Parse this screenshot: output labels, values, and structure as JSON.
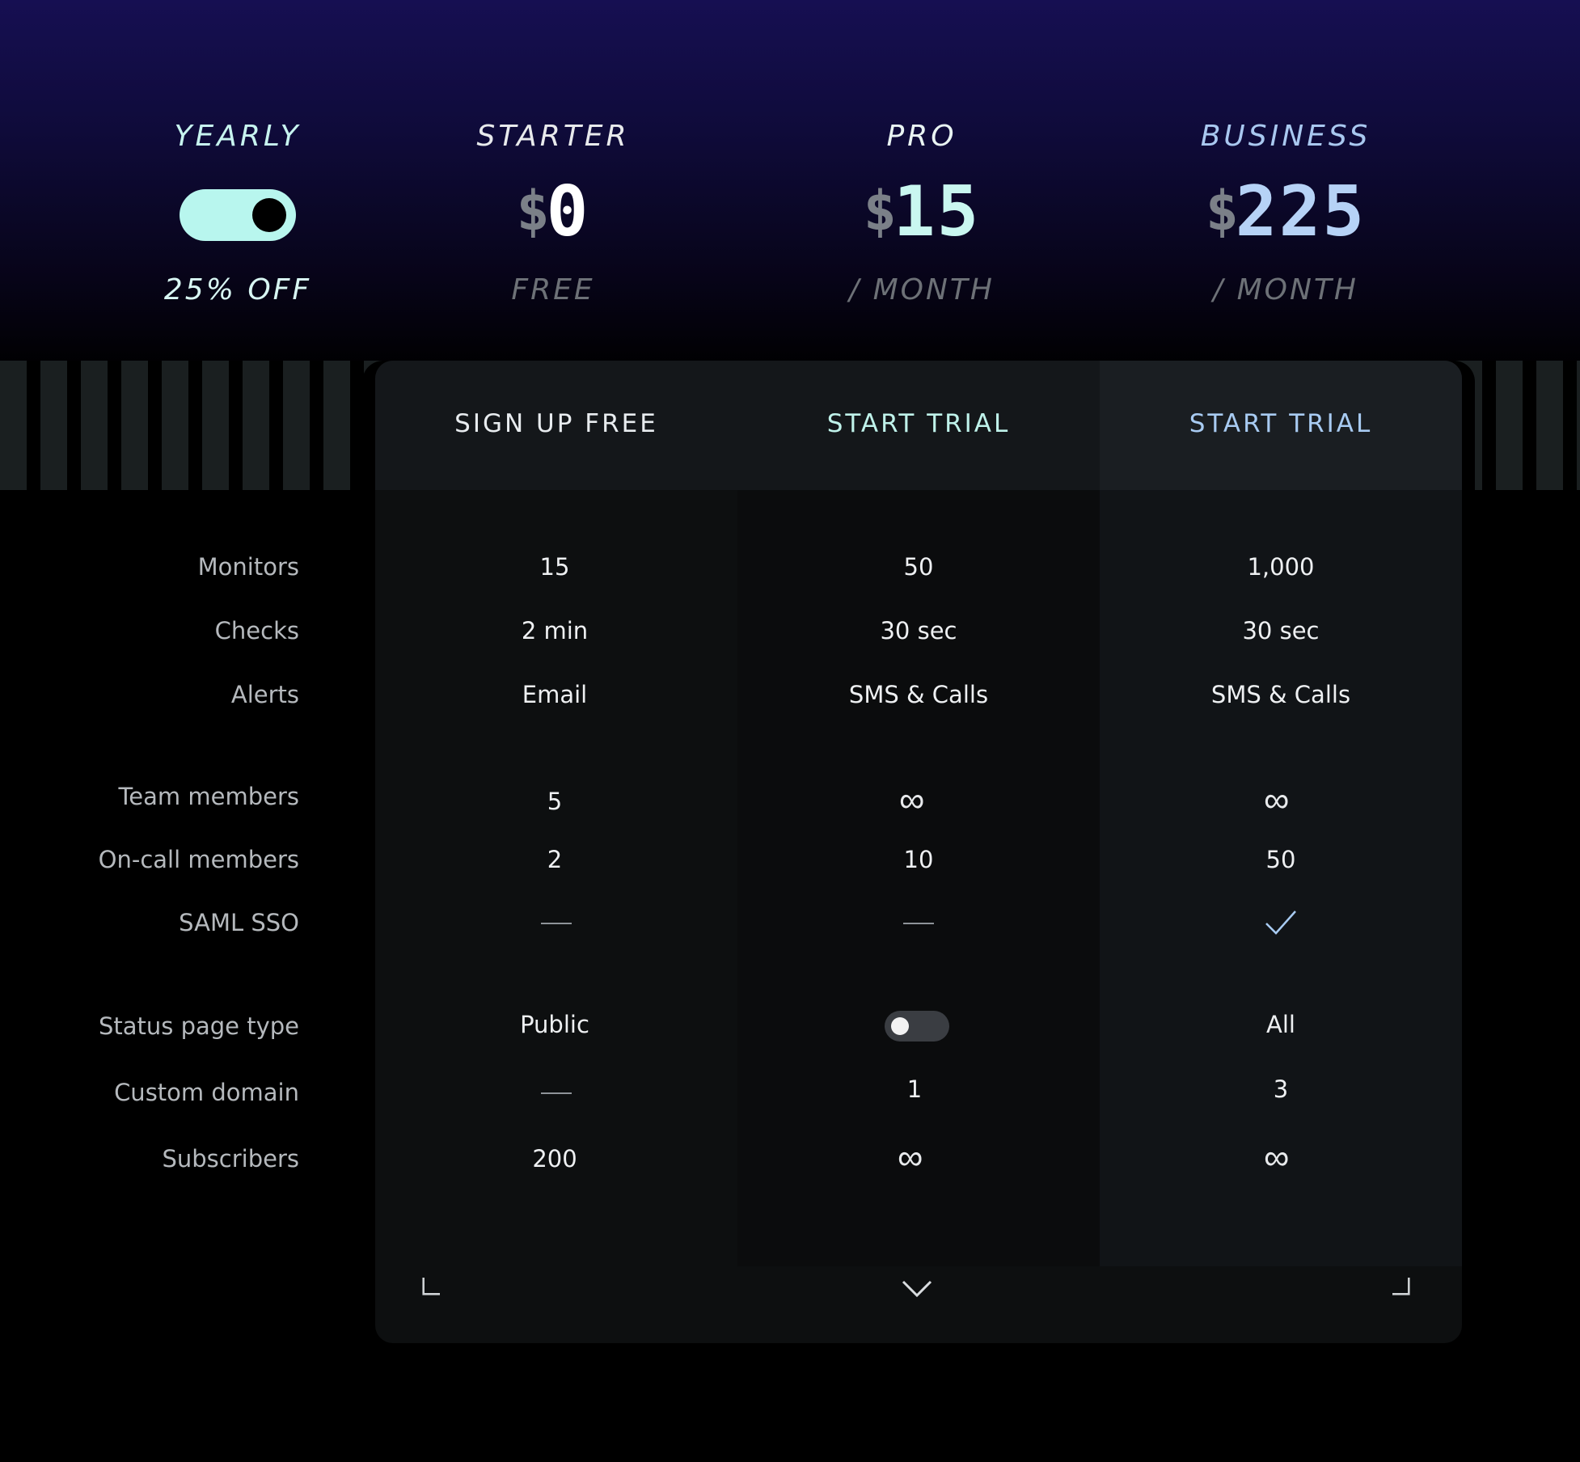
{
  "billing": {
    "period_label": "YEARLY",
    "toggle_on": true,
    "discount_label": "25% OFF"
  },
  "plans": [
    {
      "name": "STARTER",
      "currency": "$",
      "price": "0",
      "period": "FREE",
      "cta": "SIGN UP FREE",
      "title_color": "#e8eaec",
      "price_color": "#ffffff",
      "cta_color": "#e8ecef"
    },
    {
      "name": "PRO",
      "currency": "$",
      "price": "15",
      "period": "/ MONTH",
      "cta": "START TRIAL",
      "title_color": "#e9f4f3",
      "price_color": "#c9f7f0",
      "cta_color": "#bff2ea"
    },
    {
      "name": "BUSINESS",
      "currency": "$",
      "price": "225",
      "period": "/ MONTH",
      "cta": "START TRIAL",
      "title_color": "#a9c8f0",
      "price_color": "#b6d2f6",
      "cta_color": "#a8cbf2"
    }
  ],
  "features": {
    "labels": [
      "Monitors",
      "Checks",
      "Alerts",
      "Team members",
      "On-call members",
      "SAML SSO",
      "Status page type",
      "Custom domain",
      "Subscribers"
    ],
    "starter": {
      "monitors": "15",
      "checks": "2 min",
      "alerts": "Email",
      "team_members": "5",
      "oncall_members": "2",
      "status_page_type": "Public",
      "subscribers": "200"
    },
    "pro": {
      "monitors": "50",
      "checks": "30 sec",
      "alerts": "SMS & Calls",
      "oncall_members": "10",
      "custom_domain": "1"
    },
    "business": {
      "monitors": "1,000",
      "checks": "30 sec",
      "alerts": "SMS & Calls",
      "oncall_members": "50",
      "status_page_type": "All",
      "custom_domain": "3"
    }
  },
  "icons": {
    "unlimited": "∞",
    "check": "check-icon",
    "dash": "dash-icon",
    "expand": "chevron-down-icon"
  },
  "accent_colors": {
    "toggle": "#b8f6ee",
    "business": "#a8cbf2"
  }
}
